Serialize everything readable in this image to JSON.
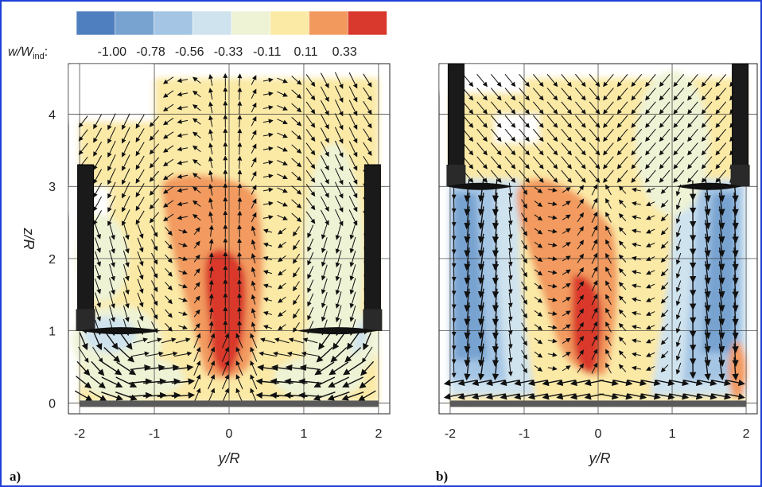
{
  "colorbar": {
    "label_main": "w/W",
    "label_sub": "ind",
    "label_colon": ":",
    "ticks": [
      "-1.00",
      "-0.78",
      "-0.56",
      "-0.33",
      "-0.11",
      "0.11",
      "0.33"
    ],
    "colors": [
      "#4f7fbf",
      "#78a3d0",
      "#a4c5e4",
      "#cfe3ee",
      "#eef3d6",
      "#fbe9a6",
      "#f29a5e",
      "#d9382c"
    ]
  },
  "chart_data": [
    {
      "type": "heatmap",
      "panel": "a)",
      "title": "",
      "xlabel": "y/R",
      "ylabel": "z/R",
      "xlim": [
        -2.15,
        2.15
      ],
      "ylim": [
        -0.15,
        4.7
      ],
      "x_ticks": [
        "-2",
        "-1",
        "0",
        "1",
        "2"
      ],
      "y_ticks": [
        "0",
        "1",
        "2",
        "3",
        "4"
      ],
      "rotor_height": 1.0,
      "peak_region": {
        "y": [
          -0.3,
          0.2
        ],
        "z": [
          0.4,
          2.1
        ],
        "value": 0.33
      }
    },
    {
      "type": "heatmap",
      "panel": "b)",
      "title": "",
      "xlabel": "y/R",
      "ylabel": "",
      "xlim": [
        -2.15,
        2.15
      ],
      "ylim": [
        -0.15,
        4.7
      ],
      "x_ticks": [
        "-2",
        "-1",
        "0",
        "1",
        "2"
      ],
      "y_ticks": [],
      "rotor_height": 3.0,
      "peak_region": {
        "y": [
          -0.35,
          0.1
        ],
        "z": [
          0.4,
          1.8
        ],
        "value": 0.33
      }
    }
  ]
}
